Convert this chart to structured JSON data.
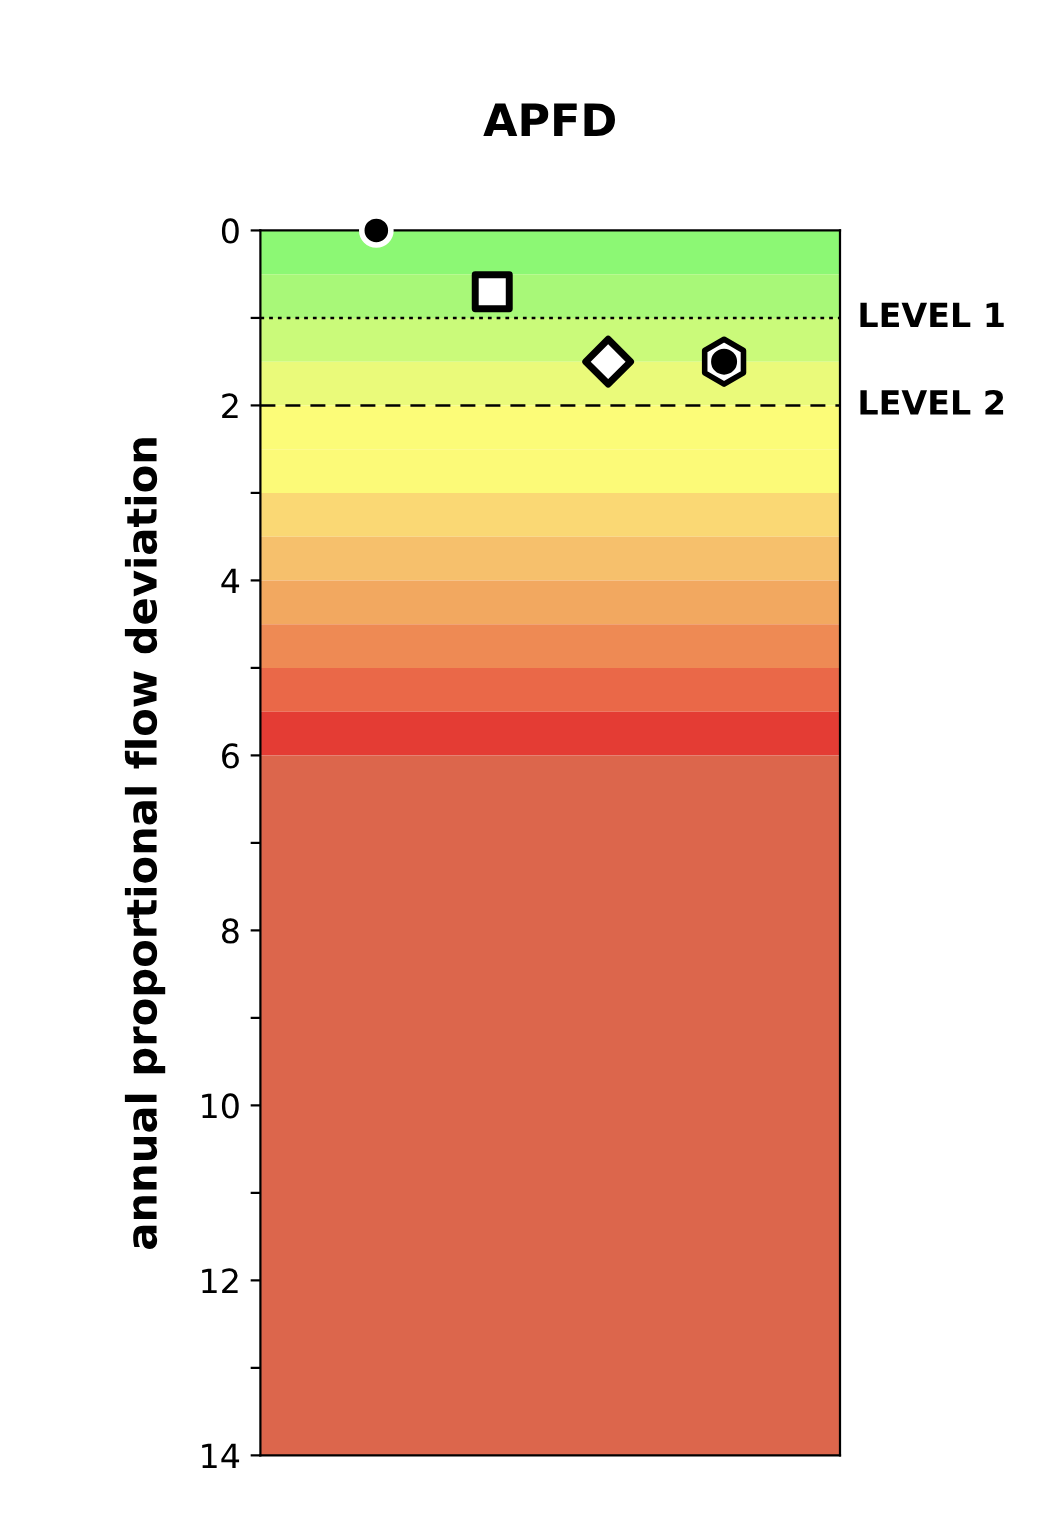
{
  "chart_data": {
    "type": "scatter",
    "title": "APFD",
    "ylabel": "annual proportional flow deviation",
    "categories": [
      null,
      null,
      null,
      null
    ],
    "series": [
      {
        "color": "#000000",
        "marker": "circle",
        "values": [
          0,
          null,
          null,
          null
        ]
      },
      {
        "color": "#000000",
        "marker": "square",
        "values": [
          null,
          0.7,
          null,
          null
        ]
      },
      {
        "color": "#000000",
        "marker": "diamond",
        "values": [
          null,
          null,
          1.5,
          null
        ]
      },
      {
        "color": "#000000",
        "values": [
          null,
          null,
          null,
          1.5
        ]
      }
    ],
    "ylim": [
      14,
      0
    ],
    "yticks": [
      0,
      {
        "value": 1,
        "label": null
      },
      2,
      {
        "value": 3,
        "label": null
      },
      4,
      {
        "value": 5,
        "label": null
      },
      6,
      {
        "value": 7,
        "label": null
      },
      8,
      {
        "value": 9,
        "label": null
      },
      10,
      {
        "value": 11,
        "label": null
      },
      12,
      {
        "value": 13,
        "label": null
      },
      14
    ],
    "tick_labels": "y",
    "grid": false,
    "legend": false,
    "bands": [
      {
        "axis": "y",
        "from": 0,
        "to": 0.5,
        "color": "#8cf874"
      },
      {
        "axis": "y",
        "from": 0.5,
        "to": 1,
        "color": "#a8f878"
      },
      {
        "axis": "y",
        "from": 1,
        "to": 1.5,
        "color": "#cafa7a"
      },
      {
        "axis": "y",
        "from": 1.5,
        "to": 2,
        "color": "#eafa7a"
      },
      {
        "axis": "y",
        "from": 2,
        "to": 2.5,
        "color": "#fcfc78"
      },
      {
        "axis": "y",
        "from": 2.5,
        "to": 3,
        "color": "#fcfa78"
      },
      {
        "axis": "y",
        "from": 3,
        "to": 3.5,
        "color": "#fad874"
      },
      {
        "axis": "y",
        "from": 3.5,
        "to": 4,
        "color": "#f6c06c"
      },
      {
        "axis": "y",
        "from": 4,
        "to": 4.5,
        "color": "#f2a860"
      },
      {
        "axis": "y",
        "from": 4.5,
        "to": 5,
        "color": "#ee8a54"
      },
      {
        "axis": "y",
        "from": 5,
        "to": 5.5,
        "color": "#ea6848"
      },
      {
        "axis": "y",
        "from": 5.5,
        "to": 6,
        "color": "#e43c34"
      },
      {
        "axis": "y",
        "from": 6,
        "to": 14,
        "color": "#dc664c"
      }
    ],
    "ref_lines": [
      {
        "axis": "y",
        "value": 1,
        "label": "LEVEL 1",
        "line_style": "dotted"
      },
      {
        "axis": "y",
        "value": 2,
        "label": "LEVEL 2",
        "line_style": "dashed"
      }
    ]
  }
}
